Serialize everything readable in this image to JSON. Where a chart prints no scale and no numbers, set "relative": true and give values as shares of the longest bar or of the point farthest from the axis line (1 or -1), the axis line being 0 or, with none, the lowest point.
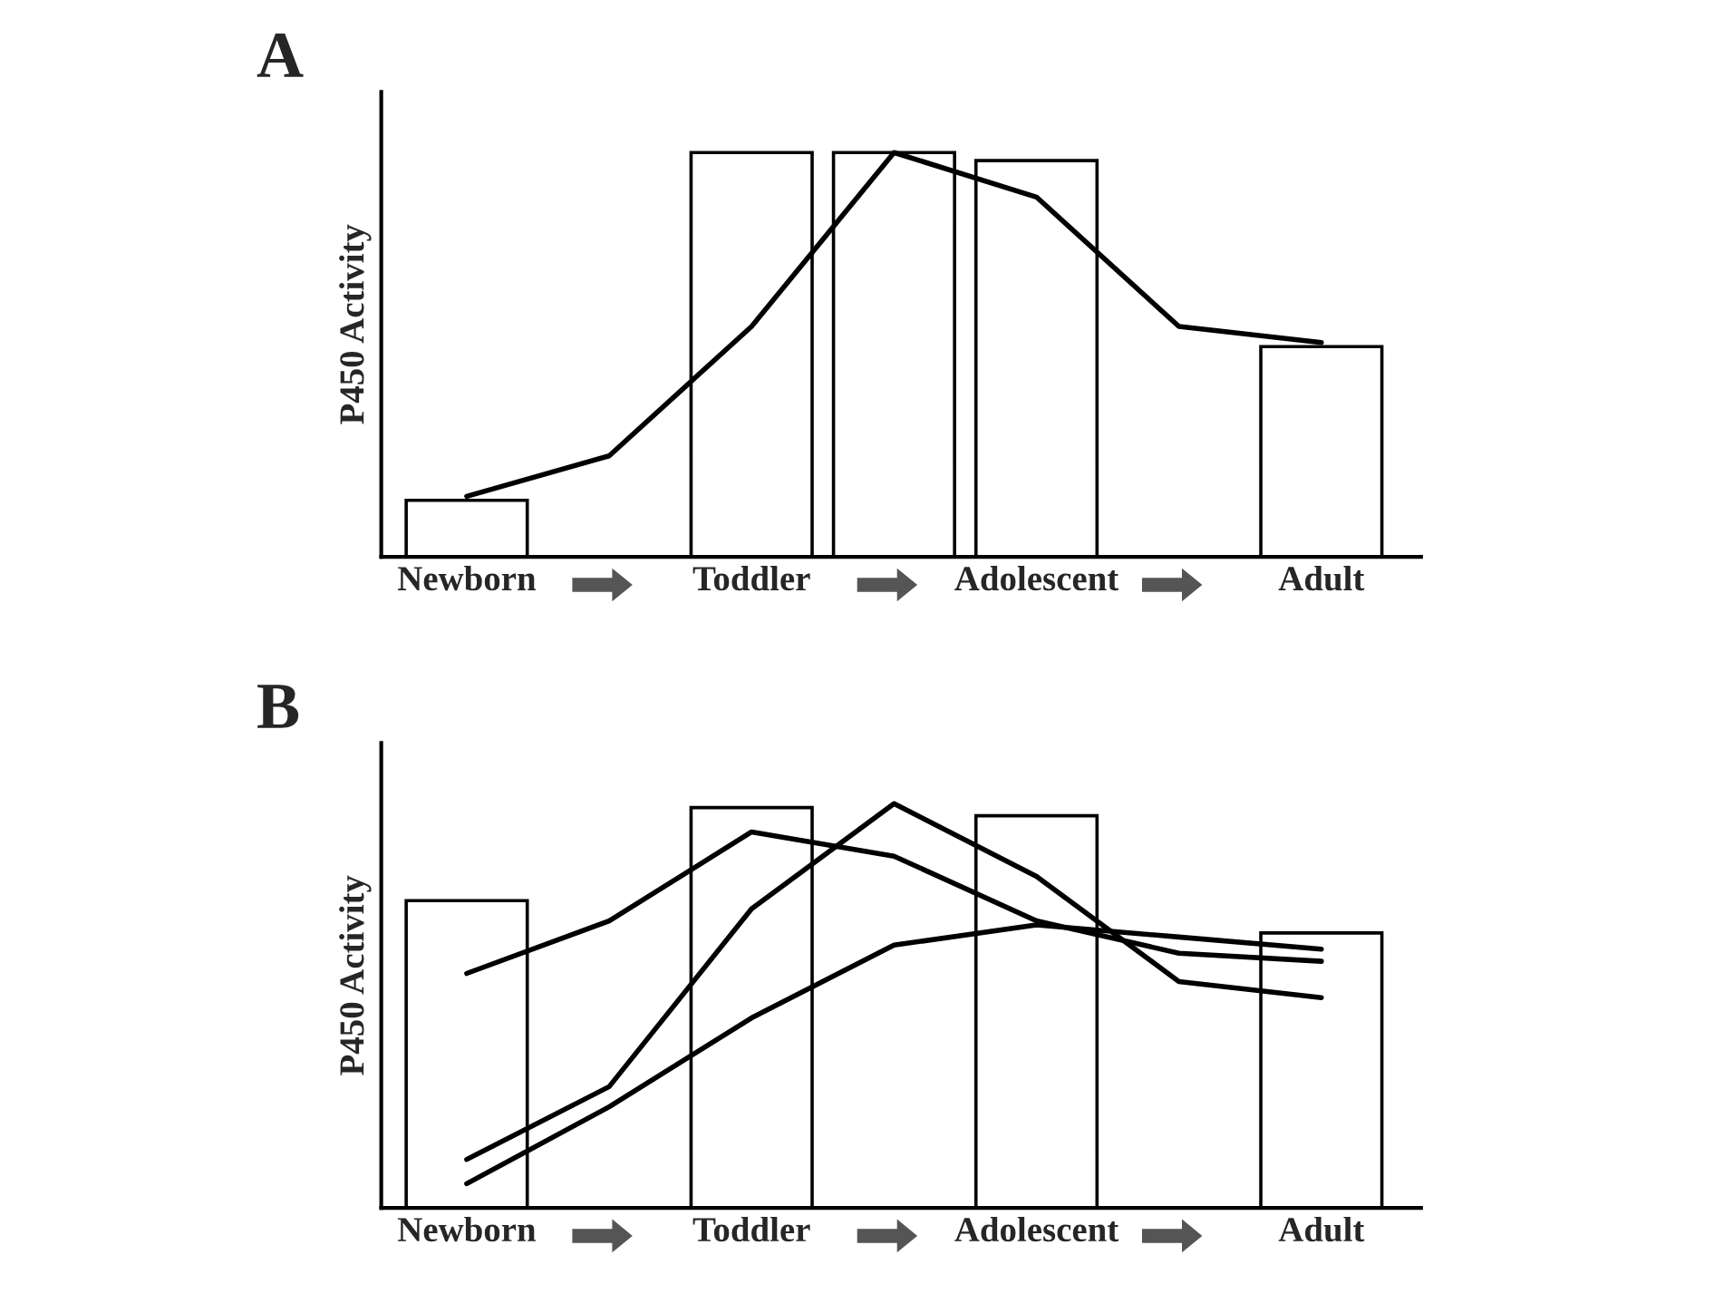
{
  "chart_data": [
    {
      "type": "bar",
      "title": "A",
      "ylabel": "P450 Activity",
      "relative": true,
      "legend": false,
      "grid": false,
      "categories": [
        "Newborn",
        null,
        "Toddler",
        null,
        "Adolescent",
        null,
        "Adult"
      ],
      "series": [
        {
          "color": "#ffffff",
          "values": [
            0.14,
            null,
            1.0,
            1.0,
            0.98,
            null,
            0.52
          ]
        },
        {
          "type": "line",
          "color": "#000000",
          "values": [
            0.15,
            0.25,
            0.57,
            1.0,
            0.89,
            0.57,
            0.53
          ]
        }
      ]
    },
    {
      "type": "bar",
      "title": "B",
      "ylabel": "P450 Activity",
      "relative": true,
      "legend": false,
      "grid": false,
      "categories": [
        "Newborn",
        null,
        "Toddler",
        null,
        "Adolescent",
        null,
        "Adult"
      ],
      "series": [
        {
          "color": "#ffffff",
          "values": [
            0.76,
            null,
            0.99,
            null,
            0.97,
            null,
            0.68
          ]
        },
        {
          "type": "line",
          "color": "#000000",
          "values": [
            0.12,
            0.3,
            0.74,
            1.0,
            0.82,
            0.56,
            0.52
          ]
        },
        {
          "type": "line",
          "color": "#000000",
          "values": [
            0.58,
            0.71,
            0.93,
            0.87,
            0.71,
            0.63,
            0.61
          ]
        },
        {
          "type": "line",
          "color": "#000000",
          "values": [
            0.06,
            0.25,
            0.47,
            0.65,
            0.7,
            0.67,
            0.64
          ]
        }
      ]
    }
  ]
}
